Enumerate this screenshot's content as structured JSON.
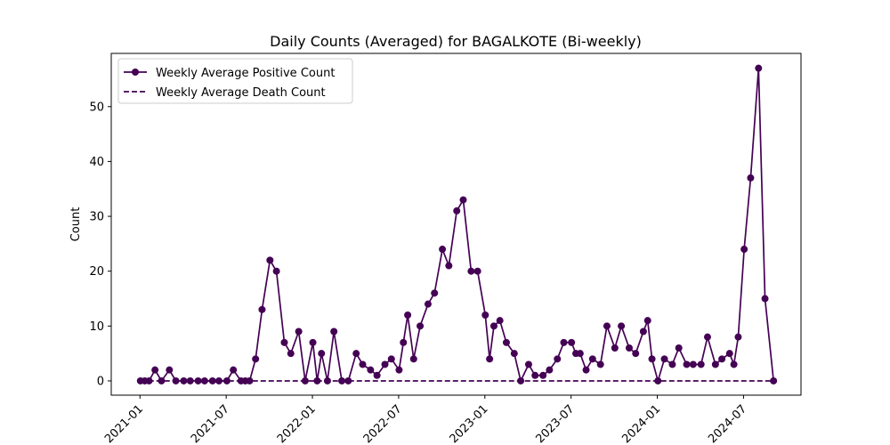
{
  "chart_data": {
    "type": "line",
    "title": "Daily Counts (Averaged) for BAGALKOTE (Bi-weekly)",
    "y_label": "Count",
    "x": [
      "2021-01",
      "2021-01",
      "2021-01",
      "2021-02",
      "2021-02",
      "2021-03",
      "2021-03",
      "2021-04",
      "2021-04",
      "2021-05",
      "2021-05",
      "2021-06",
      "2021-06",
      "2021-07",
      "2021-07",
      "2021-08",
      "2021-08",
      "2021-08",
      "2021-09",
      "2021-09",
      "2021-10",
      "2021-10",
      "2021-11",
      "2021-11",
      "2021-12",
      "2021-12",
      "2022-01",
      "2022-01",
      "2022-01",
      "2022-02",
      "2022-02",
      "2022-03",
      "2022-03",
      "2022-04",
      "2022-04",
      "2022-05",
      "2022-05",
      "2022-06",
      "2022-06",
      "2022-07",
      "2022-07",
      "2022-07",
      "2022-08",
      "2022-08",
      "2022-09",
      "2022-09",
      "2022-10",
      "2022-10",
      "2022-11",
      "2022-11",
      "2022-12",
      "2022-12",
      "2023-01",
      "2023-01",
      "2023-01",
      "2023-02",
      "2023-02",
      "2023-03",
      "2023-03",
      "2023-04",
      "2023-04",
      "2023-05",
      "2023-05",
      "2023-06",
      "2023-06",
      "2023-07",
      "2023-07",
      "2023-07",
      "2023-08",
      "2023-08",
      "2023-09",
      "2023-09",
      "2023-10",
      "2023-10",
      "2023-11",
      "2023-11",
      "2023-12",
      "2023-12",
      "2023-12",
      "2024-01",
      "2024-01",
      "2024-02",
      "2024-02",
      "2024-03",
      "2024-03",
      "2024-04",
      "2024-04",
      "2024-05",
      "2024-05",
      "2024-06",
      "2024-06",
      "2024-06",
      "2024-07",
      "2024-07",
      "2024-08",
      "2024-08",
      "2024-09"
    ],
    "series": [
      {
        "name": "Weekly Average Positive Count",
        "color": "#440154",
        "linestyle": "solid",
        "marker": true,
        "values": [
          0,
          0,
          0,
          2,
          0,
          2,
          0,
          0,
          0,
          0,
          0,
          0,
          0,
          0,
          2,
          0,
          0,
          0,
          4,
          13,
          22,
          20,
          7,
          5,
          9,
          0,
          7,
          0,
          5,
          0,
          9,
          0,
          0,
          5,
          3,
          2,
          1,
          3,
          4,
          2,
          7,
          12,
          4,
          10,
          14,
          16,
          24,
          21,
          31,
          33,
          20,
          20,
          12,
          4,
          10,
          11,
          7,
          5,
          0,
          3,
          1,
          1,
          2,
          4,
          7,
          7,
          5,
          5,
          2,
          4,
          3,
          10,
          6,
          10,
          6,
          5,
          9,
          11,
          4,
          0,
          4,
          3,
          6,
          3,
          3,
          3,
          8,
          3,
          4,
          5,
          3,
          8,
          24,
          37,
          57,
          15,
          0
        ]
      },
      {
        "name": "Weekly Average Death Count",
        "color": "#440154",
        "linestyle": "dashed",
        "marker": false,
        "values": [
          0,
          0,
          0,
          0,
          0,
          0,
          0,
          0,
          0,
          0,
          0,
          0,
          0,
          0,
          0,
          0,
          0,
          0,
          0,
          0,
          0,
          0,
          0,
          0,
          0,
          0,
          0,
          0,
          0,
          0,
          0,
          0,
          0,
          0,
          0,
          0,
          0,
          0,
          0,
          0,
          0,
          0,
          0,
          0,
          0,
          0,
          0,
          0,
          0,
          0,
          0,
          0,
          0,
          0,
          0,
          0,
          0,
          0,
          0,
          0,
          0,
          0,
          0,
          0,
          0,
          0,
          0,
          0,
          0,
          0,
          0,
          0,
          0,
          0,
          0,
          0,
          0,
          0,
          0,
          0,
          0,
          0,
          0,
          0,
          0,
          0,
          0,
          0,
          0,
          0,
          0,
          0,
          0,
          0,
          0,
          0,
          0
        ]
      }
    ],
    "xlim": [
      "2020-11",
      "2024-11"
    ],
    "xticks": [
      "2021-01",
      "2021-07",
      "2022-01",
      "2022-07",
      "2023-01",
      "2023-07",
      "2024-01",
      "2024-07"
    ],
    "ylim": [
      -2.6,
      59.7
    ],
    "yticks": [
      0,
      10,
      20,
      30,
      40,
      50
    ],
    "legend": "upper left",
    "grid": false
  }
}
